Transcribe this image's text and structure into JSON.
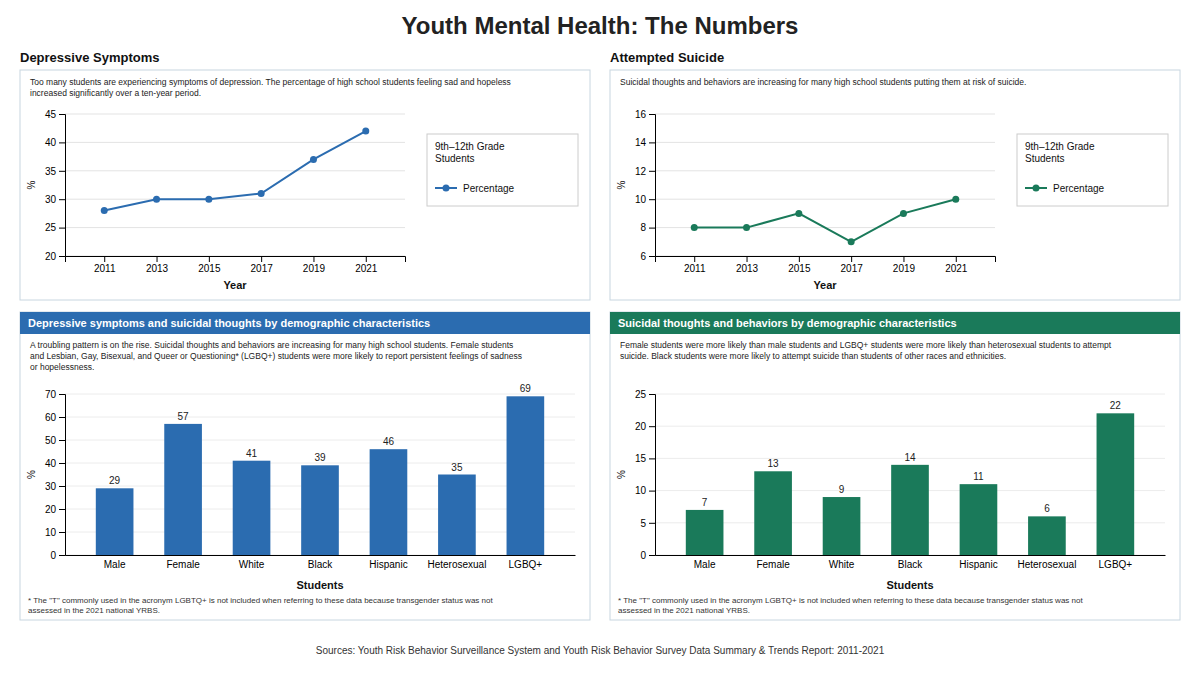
{
  "title": "Youth Mental Health: The Numbers",
  "annotations": [
    "Sources: Youth Risk Behavior Surveillance System and Youth Risk Behavior Survey Data Summary & Trends Report: 2011-2021"
  ],
  "chart_data": [
    {
      "type": "line",
      "title": "Depressive Symptoms",
      "subtitle": "Too many students are experiencing symptoms of depression. The percentage of high school students feeling sad and hopeless\nincreased significantly over a ten-year period.",
      "x": [
        2011,
        2013,
        2015,
        2017,
        2019,
        2021
      ],
      "series": [
        {
          "name": "Percentage",
          "color": "#2b6cb0",
          "marker": "circle",
          "line_style": "solid",
          "values": [
            28,
            30,
            30,
            31,
            37,
            42
          ]
        }
      ],
      "xlim": [
        2009.5,
        2022.5
      ],
      "xticks": [
        2011,
        2013,
        2015,
        2017,
        2019,
        2021
      ],
      "ylim": [
        20,
        45
      ],
      "yticks": [
        20,
        25,
        30,
        35,
        40,
        45
      ],
      "xlabel": "Year",
      "ylabel": "%",
      "grid": true,
      "legend": "right",
      "legend_title": "9th–12th Grade\nStudents"
    },
    {
      "type": "bar",
      "title": "Depressive symptoms and suicidal thoughts by demographic characteristics",
      "subtitle": "A troubling pattern is on the rise. Suicidal thoughts and behaviors are increasing for many high school students. Female students\nand Lesbian, Gay, Bisexual, and Queer or Questioning* (LGBQ+) students were more likely to report persistent feelings of sadness\nor hopelessness.",
      "categories": [
        "Male",
        "Female",
        "White",
        "Black",
        "Hispanic",
        "Heterosexual",
        "LGBQ+"
      ],
      "values": [
        29,
        57,
        41,
        39,
        46,
        35,
        69
      ],
      "color": "#2b6cb0",
      "ylim": [
        0,
        70
      ],
      "yticks": [
        0,
        10,
        20,
        30,
        40,
        50,
        60,
        70
      ],
      "xlabel": "Students",
      "ylabel": "%",
      "grid": true,
      "data_labels": true,
      "annotations": [
        "* The \"T\" commonly used in the acronym LGBTQ+ is not included when referring to these data because transgender status was not\nassessed in the 2021 national YRBS."
      ]
    },
    {
      "type": "line",
      "title": "Attempted Suicide",
      "subtitle": "Suicidal thoughts and behaviors are increasing for many high school students putting them at risk of suicide.",
      "x": [
        2011,
        2013,
        2015,
        2017,
        2019,
        2021
      ],
      "series": [
        {
          "name": "Percentage",
          "color": "#1a7a5a",
          "marker": "circle",
          "line_style": "solid",
          "values": [
            8,
            8,
            9,
            7,
            9,
            10
          ]
        }
      ],
      "xlim": [
        2009.5,
        2022.5
      ],
      "xticks": [
        2011,
        2013,
        2015,
        2017,
        2019,
        2021
      ],
      "ylim": [
        6,
        16
      ],
      "yticks": [
        6,
        8,
        10,
        12,
        14,
        16
      ],
      "xlabel": "Year",
      "ylabel": "%",
      "grid": true,
      "legend": "right",
      "legend_title": "9th–12th Grade\nStudents"
    },
    {
      "type": "bar",
      "title": "Suicidal thoughts and behaviors by demographic characteristics",
      "subtitle": "Female students were more likely than male students and LGBQ+ students were more likely than heterosexual students to attempt\nsuicide. Black students were more likely to attempt suicide than students of other races and ethnicities.",
      "categories": [
        "Male",
        "Female",
        "White",
        "Black",
        "Hispanic",
        "Heterosexual",
        "LGBQ+"
      ],
      "values": [
        7,
        13,
        9,
        14,
        11,
        6,
        22
      ],
      "color": "#1a7a5a",
      "ylim": [
        0,
        25
      ],
      "yticks": [
        0,
        5,
        10,
        15,
        20,
        25
      ],
      "xlabel": "Students",
      "ylabel": "%",
      "grid": true,
      "data_labels": true,
      "annotations": [
        "* The \"T\" commonly used in the acronym LGBTQ+ is not included when referring to these data because transgender status was not\nassessed in the 2021 national YRBS."
      ]
    }
  ]
}
